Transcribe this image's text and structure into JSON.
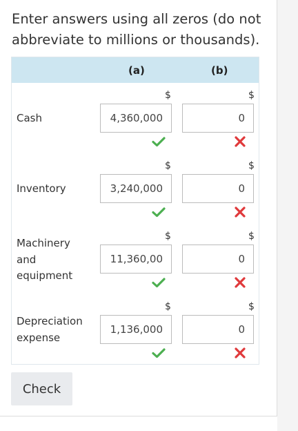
{
  "instructions": "Enter answers using all zeros (do not abbreviate to millions or thousands).",
  "table": {
    "headers": {
      "a": "(a)",
      "b": "(b)"
    },
    "currency_symbol": "$",
    "rows": [
      {
        "label": "Cash",
        "a_value": "4,360,000",
        "a_status": "correct",
        "b_value": "0",
        "b_status": "incorrect"
      },
      {
        "label": "Inventory",
        "a_value": "3,240,000",
        "a_status": "correct",
        "b_value": "0",
        "b_status": "incorrect"
      },
      {
        "label": "Machinery and equipment",
        "a_value": "11,360,00",
        "a_status": "correct",
        "b_value": "0",
        "b_status": "incorrect"
      },
      {
        "label": "Depreciation expense",
        "a_value": "1,136,000",
        "a_status": "correct",
        "b_value": "0",
        "b_status": "incorrect"
      }
    ]
  },
  "check_button": {
    "label": "Check"
  },
  "colors": {
    "header_bg": "#cde6f1",
    "correct": "#4caf50",
    "incorrect": "#e0393b",
    "button_bg": "#e9ebee"
  },
  "icons": {
    "correct": "checkmark-icon",
    "incorrect": "x-mark-icon"
  }
}
